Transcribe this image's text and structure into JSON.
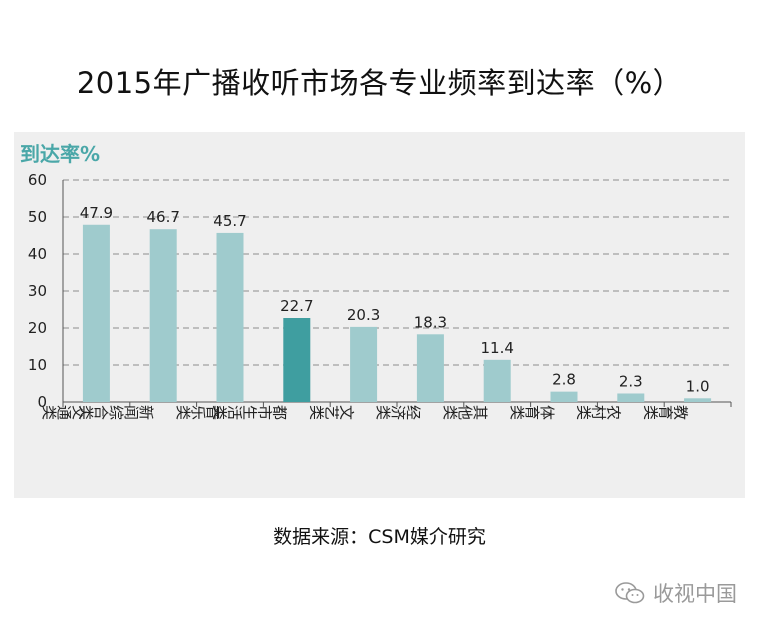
{
  "title": "2015年广播收听市场各专业频率到达率（%）",
  "source": "数据来源：CSM媒介研究",
  "watermark": "收视中国",
  "chart_data": {
    "type": "bar",
    "ylabel": "到达率%",
    "ylim": [
      0,
      60
    ],
    "yticks": [
      0,
      10,
      20,
      30,
      40,
      50,
      60
    ],
    "categories": [
      "交通类",
      "新闻综合类",
      "音乐类",
      "都市生活类",
      "文艺类",
      "经济类",
      "其他类",
      "体育类",
      "农村类",
      "教育类"
    ],
    "values": [
      47.9,
      46.7,
      45.7,
      22.7,
      20.3,
      18.3,
      11.4,
      2.8,
      2.3,
      1.0
    ],
    "value_labels": [
      "47.9",
      "46.7",
      "45.7",
      "22.7",
      "20.3",
      "18.3",
      "11.4",
      "2.8",
      "2.3",
      "1.0"
    ],
    "highlight": "都市生活类",
    "colors": {
      "bar": "#9fcbcd",
      "highlight": "#3f9ea0",
      "ylabel": "#4aa7a8"
    },
    "grid": "dashed"
  }
}
